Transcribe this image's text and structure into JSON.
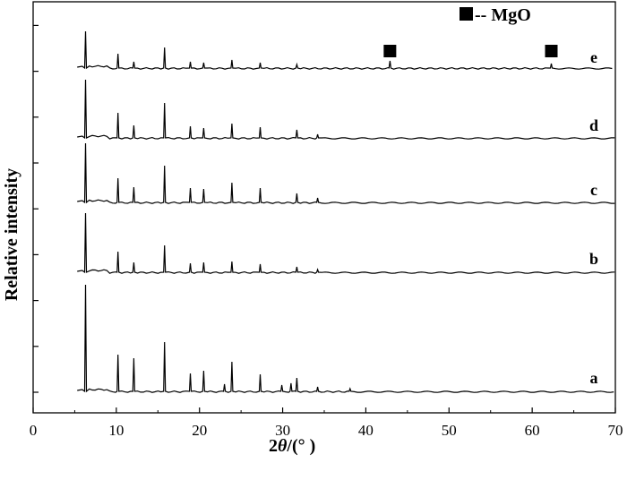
{
  "chart_data": {
    "type": "line",
    "xlabel_parts": [
      "2",
      "θ",
      "/(°  )"
    ],
    "ylabel": "Relative intensity",
    "xlim": [
      0,
      70
    ],
    "x_ticks": [
      0,
      10,
      20,
      30,
      40,
      50,
      60,
      70
    ],
    "y_ticks_visible": false,
    "legend": {
      "marker": "square",
      "label": "-- MgO",
      "placement": "top-right"
    },
    "mgo_peaks": [
      42.9,
      62.3
    ],
    "series": [
      {
        "name": "a",
        "peaks": [
          [
            6.3,
            120
          ],
          [
            10.2,
            42
          ],
          [
            12.1,
            38
          ],
          [
            15.8,
            56
          ],
          [
            18.9,
            21
          ],
          [
            20.5,
            24
          ],
          [
            23.0,
            9
          ],
          [
            23.9,
            34
          ],
          [
            27.3,
            20
          ],
          [
            29.9,
            8
          ],
          [
            31.0,
            10
          ],
          [
            31.7,
            16
          ],
          [
            34.2,
            6
          ],
          [
            38.1,
            4
          ]
        ]
      },
      {
        "name": "b",
        "peaks": [
          [
            6.3,
            67
          ],
          [
            10.2,
            24
          ],
          [
            12.1,
            12
          ],
          [
            15.8,
            31
          ],
          [
            18.9,
            11
          ],
          [
            20.5,
            12
          ],
          [
            23.9,
            13
          ],
          [
            27.3,
            10
          ],
          [
            31.7,
            7
          ],
          [
            34.2,
            4
          ]
        ]
      },
      {
        "name": "c",
        "peaks": [
          [
            6.3,
            67
          ],
          [
            10.2,
            28
          ],
          [
            12.1,
            18
          ],
          [
            15.8,
            42
          ],
          [
            18.9,
            17
          ],
          [
            20.5,
            16
          ],
          [
            23.9,
            23
          ],
          [
            27.3,
            17
          ],
          [
            31.7,
            11
          ],
          [
            34.2,
            6
          ]
        ]
      },
      {
        "name": "d",
        "peaks": [
          [
            6.3,
            66
          ],
          [
            10.2,
            29
          ],
          [
            12.1,
            15
          ],
          [
            15.8,
            40
          ],
          [
            18.9,
            14
          ],
          [
            20.5,
            12
          ],
          [
            23.9,
            17
          ],
          [
            27.3,
            13
          ],
          [
            31.7,
            10
          ],
          [
            34.2,
            5
          ]
        ]
      },
      {
        "name": "e",
        "peaks": [
          [
            6.3,
            42
          ],
          [
            10.2,
            17
          ],
          [
            12.1,
            8
          ],
          [
            15.8,
            24
          ],
          [
            18.9,
            8
          ],
          [
            20.5,
            7
          ],
          [
            23.9,
            10
          ],
          [
            27.3,
            7
          ],
          [
            31.7,
            5
          ],
          [
            42.9,
            9
          ],
          [
            62.3,
            6
          ]
        ]
      }
    ]
  }
}
